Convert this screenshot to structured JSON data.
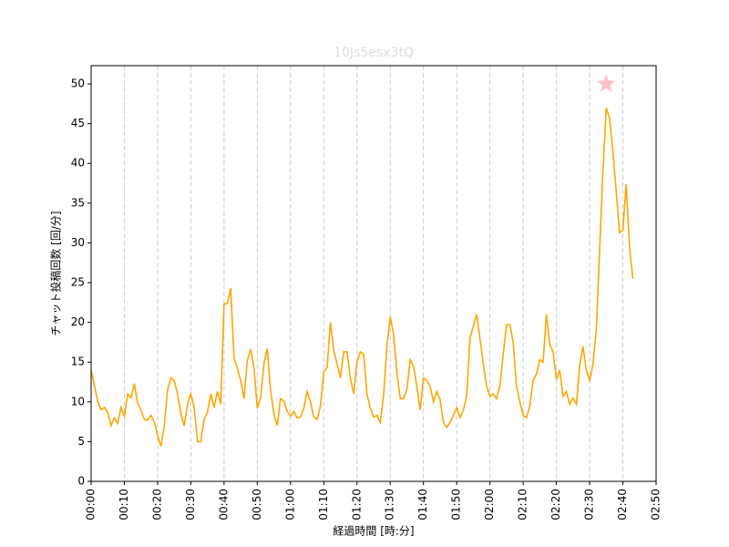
{
  "chart_data": {
    "type": "line",
    "title": "10Js5esx3tQ",
    "x_label": "経過時間 [時:分]",
    "y_label": "チャット投稿回数 [回/分]",
    "x": [
      0,
      1,
      2,
      3,
      4,
      5,
      6,
      7,
      8,
      9,
      10,
      11,
      12,
      13,
      14,
      15,
      16,
      17,
      18,
      19,
      20,
      21,
      22,
      23,
      24,
      25,
      26,
      27,
      28,
      29,
      30,
      31,
      32,
      33,
      34,
      35,
      36,
      37,
      38,
      39,
      40,
      41,
      42,
      43,
      44,
      45,
      46,
      47,
      48,
      49,
      50,
      51,
      52,
      53,
      54,
      55,
      56,
      57,
      58,
      59,
      60,
      61,
      62,
      63,
      64,
      65,
      66,
      67,
      68,
      69,
      70,
      71,
      72,
      73,
      74,
      75,
      76,
      77,
      78,
      79,
      80,
      81,
      82,
      83,
      84,
      85,
      86,
      87,
      88,
      89,
      90,
      91,
      92,
      93,
      94,
      95,
      96,
      97,
      98,
      99,
      100,
      101,
      102,
      103,
      104,
      105,
      106,
      107,
      108,
      109,
      110,
      111,
      112,
      113,
      114,
      115,
      116,
      117,
      118,
      119,
      120,
      121,
      122,
      123,
      124,
      125,
      126,
      127,
      128,
      129,
      130,
      131,
      132,
      133,
      134,
      135,
      136,
      137,
      138,
      139,
      140,
      141,
      142,
      143,
      144,
      145,
      146,
      147,
      148,
      149,
      150,
      151,
      152,
      153,
      154,
      155,
      156,
      157,
      158,
      159,
      160,
      161,
      162,
      163
    ],
    "series": [
      {
        "color": "#ffa500",
        "values": [
          14,
          12,
          10,
          9,
          9.3,
          8.7,
          7,
          8,
          7.3,
          9.3,
          8.2,
          11,
          10.5,
          12.3,
          9.8,
          9,
          7.8,
          7.7,
          8.3,
          7.5,
          5.8,
          4.4,
          7,
          11.5,
          13,
          12.7,
          11,
          8.5,
          7,
          9.7,
          11,
          9.3,
          5,
          5,
          7.8,
          8.7,
          11,
          9.3,
          11.3,
          9.7,
          22.3,
          22.4,
          24.3,
          15.5,
          14.2,
          12.7,
          10.4,
          15.2,
          16.6,
          14.3,
          9.2,
          10.5,
          14.8,
          16.7,
          11.4,
          8.5,
          7,
          10.4,
          10.1,
          8.8,
          8.2,
          8.8,
          8,
          8.1,
          9.2,
          11.3,
          10,
          8.1,
          7.8,
          9.5,
          13.8,
          14.3,
          20,
          16.5,
          14.8,
          13,
          16.3,
          16.3,
          13,
          11,
          15,
          16.3,
          16,
          11,
          9.2,
          8.1,
          8.3,
          7.4,
          10.8,
          17,
          20.7,
          18.5,
          13.8,
          10.4,
          10.4,
          11.5,
          15.3,
          14.5,
          12,
          9,
          13,
          12.7,
          12,
          10,
          11.3,
          10.3,
          7.4,
          6.8,
          7.4,
          8.3,
          9.3,
          8,
          9,
          10.7,
          18,
          19.5,
          21,
          18,
          14.8,
          12,
          10.7,
          11,
          10.4,
          12,
          16,
          19.7,
          19.7,
          17.5,
          12,
          10,
          8.3,
          8,
          9.5,
          12.7,
          13.5,
          15.3,
          15,
          21,
          17.2,
          16.3,
          12.8,
          14,
          10.7,
          11.3,
          9.7,
          10.5,
          9.7,
          14.5,
          17,
          14,
          12.7,
          14.7,
          19,
          29,
          39,
          47,
          45.7,
          41.5,
          36.5,
          31.3,
          31.6,
          37.4,
          29.5,
          25.5
        ]
      }
    ],
    "highlight": {
      "x": 155,
      "y": 50,
      "color": "pink"
    },
    "xlim": [
      0,
      170
    ],
    "ylim": [
      0,
      52.3
    ],
    "xticks": [
      {
        "value": 0,
        "label": "00:00"
      },
      {
        "value": 10,
        "label": "00:10"
      },
      {
        "value": 20,
        "label": "00:20"
      },
      {
        "value": 30,
        "label": "00:30"
      },
      {
        "value": 40,
        "label": "00:40"
      },
      {
        "value": 50,
        "label": "00:50"
      },
      {
        "value": 60,
        "label": "01:00"
      },
      {
        "value": 70,
        "label": "01:10"
      },
      {
        "value": 80,
        "label": "01:20"
      },
      {
        "value": 90,
        "label": "01:30"
      },
      {
        "value": 100,
        "label": "01:40"
      },
      {
        "value": 110,
        "label": "01:50"
      },
      {
        "value": 120,
        "label": "02:00"
      },
      {
        "value": 130,
        "label": "02:10"
      },
      {
        "value": 140,
        "label": "02:20"
      },
      {
        "value": 150,
        "label": "02:30"
      },
      {
        "value": 160,
        "label": "02:40"
      },
      {
        "value": 170,
        "label": "02:50"
      }
    ],
    "yticks": [
      0,
      5,
      10,
      15,
      20,
      25,
      30,
      35,
      40,
      45,
      50
    ],
    "grid_x": true
  }
}
